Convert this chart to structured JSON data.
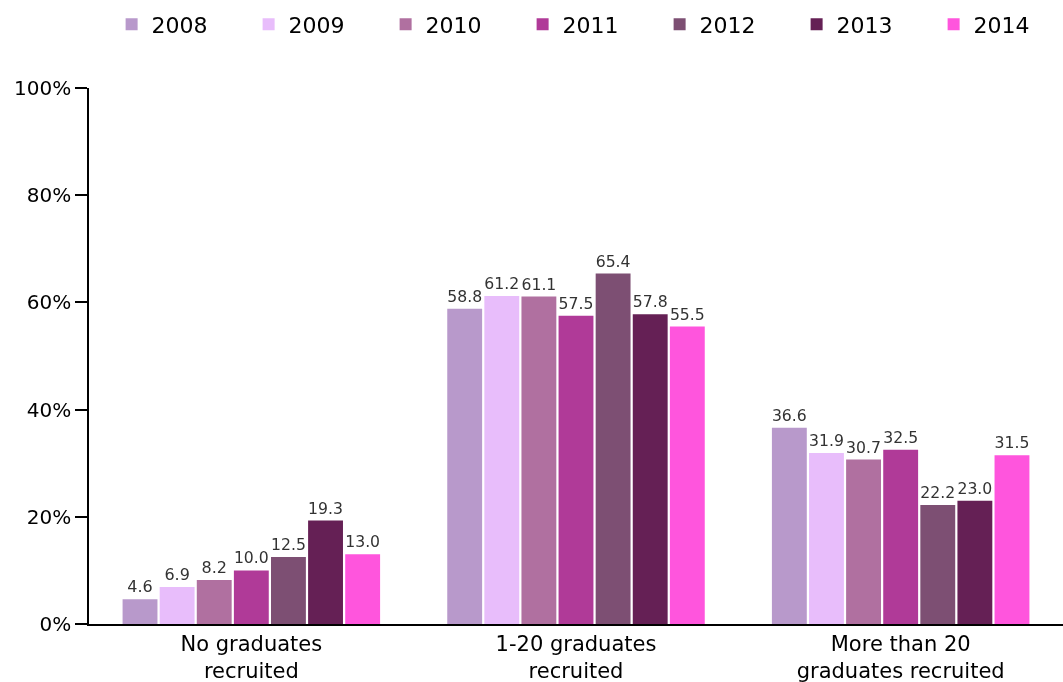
{
  "chart_data": {
    "type": "bar",
    "categories": [
      "No graduates recruited",
      "1-20 graduates recruited",
      "More than 20 graduates recruited"
    ],
    "series": [
      {
        "name": "2008",
        "color": "#b899cb",
        "values": [
          4.6,
          58.8,
          36.6
        ],
        "value_labels": [
          "4.6",
          "58.8",
          "36.6"
        ]
      },
      {
        "name": "2009",
        "color": "#e8bdfb",
        "values": [
          6.9,
          61.2,
          31.9
        ],
        "value_labels": [
          "6.9",
          "61.2",
          "31.9"
        ]
      },
      {
        "name": "2010",
        "color": "#b070a0",
        "values": [
          8.2,
          61.1,
          30.7
        ],
        "value_labels": [
          "8.2",
          "61.1",
          "30.7"
        ]
      },
      {
        "name": "2011",
        "color": "#b03a98",
        "values": [
          10.0,
          57.5,
          32.5
        ],
        "value_labels": [
          "10.0",
          "57.5",
          "32.5"
        ]
      },
      {
        "name": "2012",
        "color": "#7d4f73",
        "values": [
          12.5,
          65.4,
          22.2
        ],
        "value_labels": [
          "12.5",
          "65.4",
          "22.2"
        ]
      },
      {
        "name": "2013",
        "color": "#652055",
        "values": [
          19.3,
          57.8,
          23.0
        ],
        "value_labels": [
          "19.3",
          "57.8",
          "23.0"
        ]
      },
      {
        "name": "2014",
        "color": "#ff55dd",
        "values": [
          13.0,
          55.5,
          31.5
        ],
        "value_labels": [
          "13.0",
          "55.5",
          "31.5"
        ]
      }
    ],
    "ylim": [
      0,
      100
    ],
    "yticks": [
      {
        "value": 0,
        "label": "0%"
      },
      {
        "value": 20,
        "label": "20%"
      },
      {
        "value": 40,
        "label": "40%"
      },
      {
        "value": 60,
        "label": "60%"
      },
      {
        "value": 80,
        "label": "80%"
      },
      {
        "value": 100,
        "label": "100%"
      }
    ],
    "grid": false,
    "legend": "top"
  }
}
